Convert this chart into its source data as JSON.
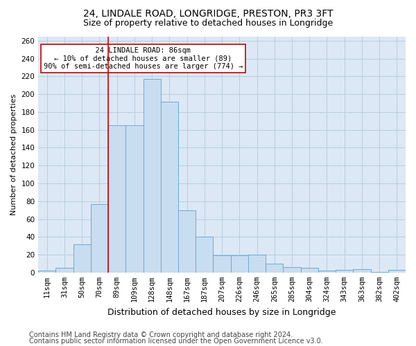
{
  "title": "24, LINDALE ROAD, LONGRIDGE, PRESTON, PR3 3FT",
  "subtitle": "Size of property relative to detached houses in Longridge",
  "xlabel": "Distribution of detached houses by size in Longridge",
  "ylabel": "Number of detached properties",
  "categories": [
    "11sqm",
    "31sqm",
    "50sqm",
    "70sqm",
    "89sqm",
    "109sqm",
    "128sqm",
    "148sqm",
    "167sqm",
    "187sqm",
    "207sqm",
    "226sqm",
    "246sqm",
    "265sqm",
    "285sqm",
    "304sqm",
    "324sqm",
    "343sqm",
    "363sqm",
    "382sqm",
    "402sqm"
  ],
  "values": [
    2,
    5,
    32,
    77,
    165,
    165,
    217,
    192,
    70,
    40,
    19,
    19,
    20,
    10,
    6,
    5,
    2,
    3,
    4,
    1,
    3
  ],
  "bar_color": "#c9ddf0",
  "bar_edge_color": "#6aaad4",
  "vline_x_index": 3.5,
  "vline_color": "#cc0000",
  "annotation_text": "  24 LINDALE ROAD: 86sqm  \n← 10% of detached houses are smaller (89)\n90% of semi-detached houses are larger (774) →",
  "annotation_box_facecolor": "#ffffff",
  "annotation_box_edgecolor": "#cc0000",
  "ylim": [
    0,
    265
  ],
  "yticks": [
    0,
    20,
    40,
    60,
    80,
    100,
    120,
    140,
    160,
    180,
    200,
    220,
    240,
    260
  ],
  "footer_line1": "Contains HM Land Registry data © Crown copyright and database right 2024.",
  "footer_line2": "Contains public sector information licensed under the Open Government Licence v3.0.",
  "bg_color": "#ffffff",
  "plot_bg_color": "#dce8f5",
  "grid_color": "#b8cde0",
  "title_fontsize": 10,
  "subtitle_fontsize": 9,
  "xlabel_fontsize": 9,
  "ylabel_fontsize": 8,
  "tick_fontsize": 7.5,
  "annotation_fontsize": 7.5,
  "footer_fontsize": 7
}
